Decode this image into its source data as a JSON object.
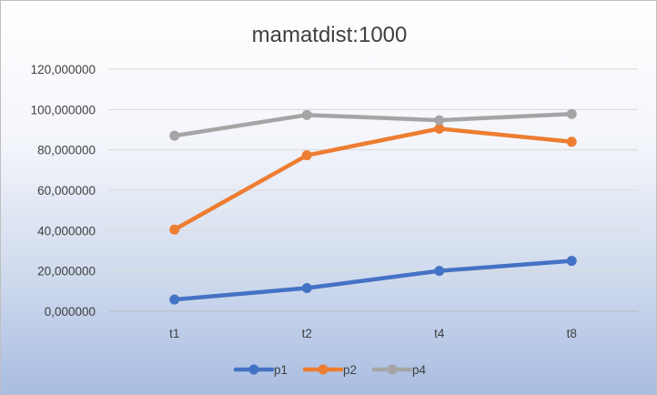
{
  "chart_data": {
    "type": "line",
    "title": "mamatdist:1000",
    "categories": [
      "t1",
      "t2",
      "t4",
      "t8"
    ],
    "ylim": [
      0,
      120
    ],
    "yticks": [
      0,
      20,
      40,
      60,
      80,
      100,
      120
    ],
    "ytick_labels": [
      "0,000000",
      "20,000000",
      "40,000000",
      "60,000000",
      "80,000000",
      "100,000000",
      "120,000000"
    ],
    "grid": true,
    "legend_position": "bottom",
    "series": [
      {
        "name": "p1",
        "color": "#4472c4",
        "values": [
          5.8,
          11.5,
          20.0,
          25.0
        ]
      },
      {
        "name": "p2",
        "color": "#ed7d31",
        "values": [
          40.5,
          77.3,
          90.5,
          84.0
        ]
      },
      {
        "name": "p4",
        "color": "#a5a5a5",
        "values": [
          87.0,
          97.3,
          94.7,
          97.8
        ]
      }
    ]
  }
}
